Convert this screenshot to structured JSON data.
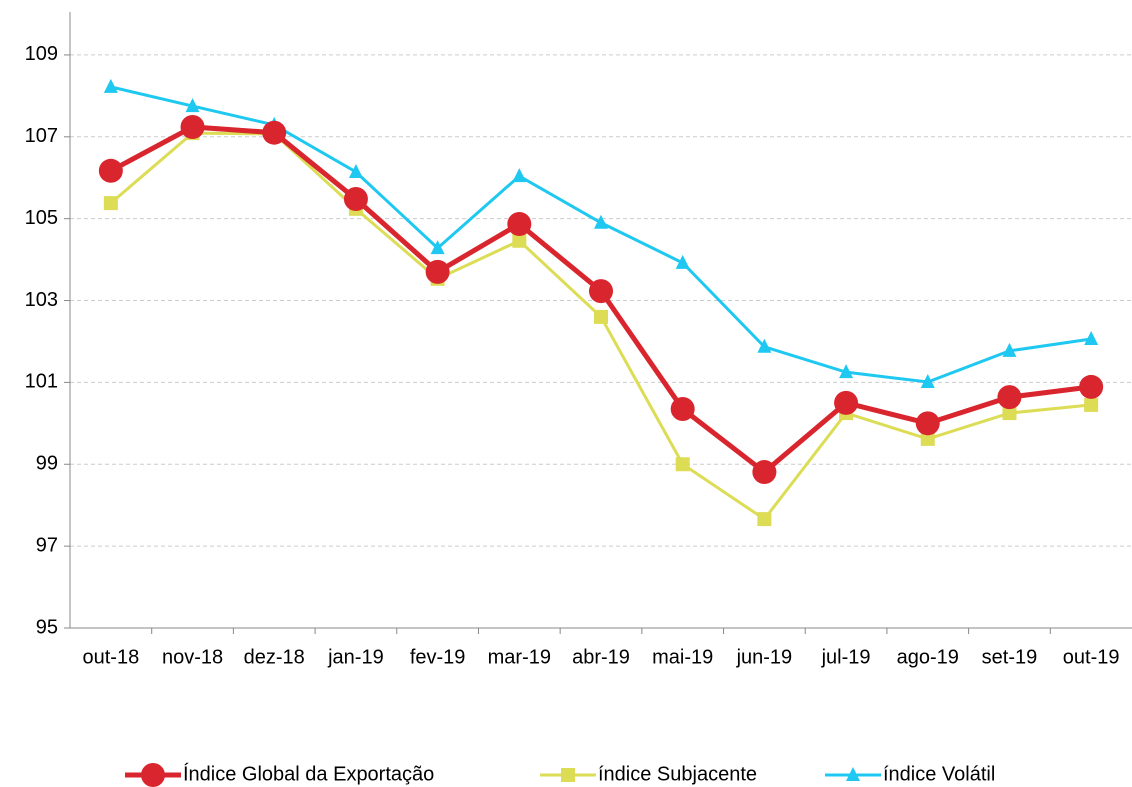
{
  "chart_data": {
    "type": "line",
    "categories": [
      "out-18",
      "nov-18",
      "dez-18",
      "jan-19",
      "fev-19",
      "mar-19",
      "abr-19",
      "mai-19",
      "jun-19",
      "jul-19",
      "ago-19",
      "set-19",
      "out-19"
    ],
    "series": [
      {
        "name": "Índice Global da Exportação",
        "color": "#d9262e",
        "marker": "circle",
        "values": [
          106.17,
          107.24,
          107.1,
          105.48,
          103.7,
          104.87,
          103.23,
          100.35,
          98.81,
          100.5,
          100.0,
          100.64,
          100.89
        ]
      },
      {
        "name": "índice Subjacente",
        "color": "#dcdc55",
        "marker": "square",
        "values": [
          105.38,
          107.09,
          107.07,
          105.24,
          103.53,
          104.46,
          102.6,
          99.0,
          97.66,
          100.25,
          99.62,
          100.25,
          100.45
        ]
      },
      {
        "name": "índice Volátil",
        "color": "#1ec8f0",
        "marker": "triangle",
        "values": [
          108.22,
          107.75,
          107.29,
          106.14,
          104.28,
          106.04,
          104.9,
          103.92,
          101.87,
          101.25,
          101.01,
          101.77,
          102.06
        ]
      }
    ],
    "ylim": [
      95,
      110
    ],
    "yticks": [
      95,
      97,
      99,
      101,
      103,
      105,
      107,
      109
    ],
    "grid": true,
    "legend": "bottom"
  }
}
